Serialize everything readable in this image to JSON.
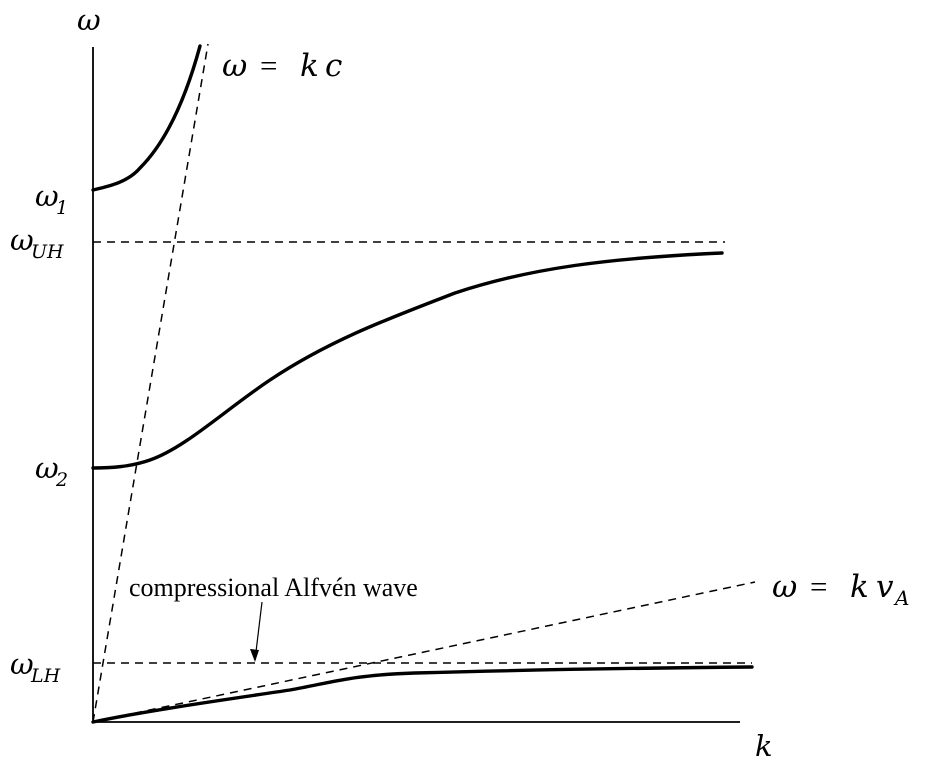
{
  "axes": {
    "y_label": "ω",
    "x_label": "k"
  },
  "levels": {
    "omega_1": {
      "base": "ω",
      "sub": "1"
    },
    "omega_UH": {
      "base": "ω",
      "sub": "UH"
    },
    "omega_2": {
      "base": "ω",
      "sub": "2"
    },
    "omega_LH": {
      "base": "ω",
      "sub": "LH"
    }
  },
  "lines": {
    "light_line": {
      "lhs": "ω",
      "eq": "=",
      "k": "k",
      "v": "c"
    },
    "alfven_line": {
      "lhs": "ω",
      "eq": "=",
      "k": "k",
      "v": "v",
      "v_sub": "A"
    }
  },
  "annotation": {
    "text": "compressional Alfvén wave"
  }
}
